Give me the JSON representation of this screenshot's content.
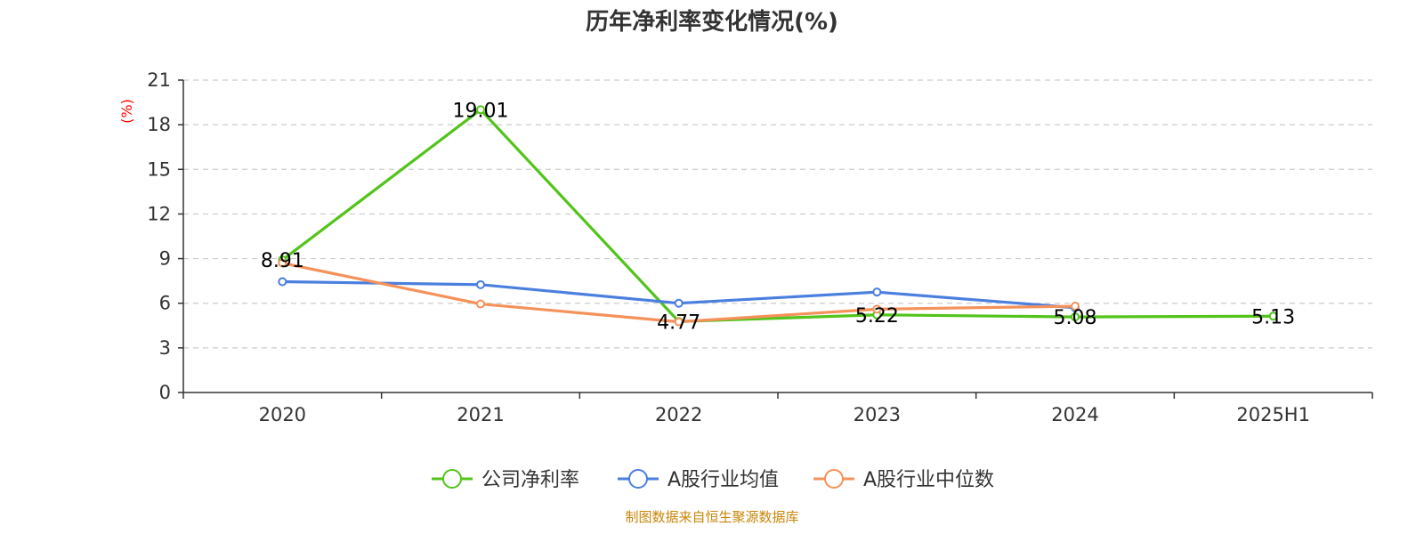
{
  "chart_data": {
    "type": "line",
    "title": "历年净利率变化情况(%)",
    "xlabel": "",
    "ylabel": "(%)",
    "categories": [
      "2020",
      "2021",
      "2022",
      "2023",
      "2024",
      "2025H1"
    ],
    "ylim": [
      0,
      21
    ],
    "yticks": [
      0,
      3,
      6,
      9,
      12,
      15,
      18,
      21
    ],
    "grid": true,
    "legend_position": "bottom",
    "series": [
      {
        "name": "公司净利率",
        "color": "#52c41a",
        "values": [
          8.91,
          19.01,
          4.77,
          5.22,
          5.08,
          5.13
        ],
        "labels": [
          "8.91",
          "19.01",
          "4.77",
          "5.22",
          "5.08",
          "5.13"
        ]
      },
      {
        "name": "A股行业均值",
        "color": "#4a7fdf",
        "values": [
          7.45,
          7.25,
          6.0,
          6.75,
          5.7,
          null
        ]
      },
      {
        "name": "A股行业中位数",
        "color": "#f5915a",
        "values": [
          8.7,
          5.95,
          4.75,
          5.6,
          5.8,
          null
        ]
      }
    ],
    "source": "制图数据来自恒生聚源数据库"
  }
}
